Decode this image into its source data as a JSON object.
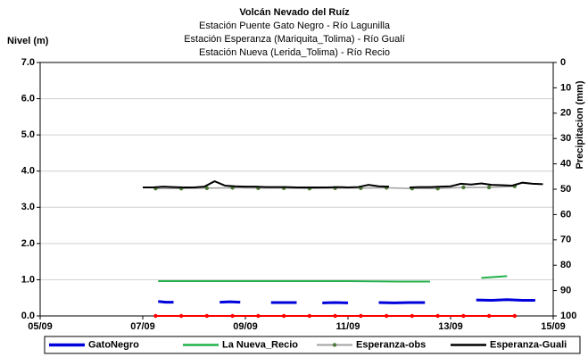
{
  "chart_data": {
    "type": "line",
    "title": "Volcán Nevado del Ruíz",
    "subtitles": [
      "Estación Puente Gato Negro - Río Lagunilla",
      "Estación Esperanza (Mariquita_Tolima) - Río Gualí",
      "Estación Nueva (Lerida_Tolima) - Río Recio"
    ],
    "y_label": "Nivel (m)",
    "y2_label": "Precipitacion (mm)",
    "xlim": [
      5,
      15
    ],
    "xticks": [
      {
        "value": 5,
        "label": "05/09"
      },
      {
        "value": 7,
        "label": "07/09"
      },
      {
        "value": 9,
        "label": "09/09"
      },
      {
        "value": 11,
        "label": "11/09"
      },
      {
        "value": 13,
        "label": "13/09"
      },
      {
        "value": 15,
        "label": "15/09"
      }
    ],
    "ylim": [
      0,
      7
    ],
    "yticks": [
      {
        "value": 0,
        "label": "0.0"
      },
      {
        "value": 1,
        "label": "1.0"
      },
      {
        "value": 2,
        "label": "2.0"
      },
      {
        "value": 3,
        "label": "3.0"
      },
      {
        "value": 4,
        "label": "4.0"
      },
      {
        "value": 5,
        "label": "5.0"
      },
      {
        "value": 6,
        "label": "6.0"
      },
      {
        "value": 7,
        "label": "7.0"
      }
    ],
    "y2lim": [
      0,
      100
    ],
    "y2_inverted": true,
    "y2ticks": [
      0,
      10,
      20,
      30,
      40,
      50,
      60,
      70,
      80,
      90,
      100
    ],
    "grid": true,
    "legend": "bottom",
    "series": [
      {
        "name": "GatoNegro",
        "color": "#0000dd",
        "width": 3,
        "x": [
          7.3,
          7.45,
          7.6,
          8.0,
          8.5,
          8.7,
          8.9,
          9.2,
          9.5,
          9.75,
          10.0,
          10.2,
          10.5,
          10.75,
          11.0,
          11.3,
          11.6,
          11.9,
          12.2,
          12.5,
          13.0,
          13.5,
          13.8,
          14.1,
          14.4,
          14.65
        ],
        "values": [
          0.4,
          0.38,
          0.38,
          null,
          0.38,
          0.39,
          0.38,
          null,
          0.37,
          0.37,
          0.37,
          null,
          0.36,
          0.37,
          0.36,
          null,
          0.37,
          0.36,
          0.37,
          0.37,
          null,
          0.44,
          0.43,
          0.45,
          0.43,
          0.43
        ]
      },
      {
        "name": "La Nueva_Recio",
        "color": "#22b04b",
        "width": 2,
        "x": [
          7.3,
          8,
          9,
          10,
          11,
          12,
          12.6,
          13.1,
          13.6,
          14.1
        ],
        "values": [
          0.96,
          0.96,
          0.96,
          0.96,
          0.96,
          0.95,
          0.95,
          null,
          1.05,
          1.1
        ]
      },
      {
        "name": "Esperanza-obs",
        "color": "#a0a0a0",
        "marker_color": "#4f7a3a",
        "width": 1.5,
        "x": [
          7.25,
          7.75,
          8.25,
          8.75,
          9.25,
          9.75,
          10.25,
          10.75,
          11.25,
          11.75,
          12.25,
          12.75,
          13.25,
          13.75,
          14.25
        ],
        "values": [
          3.52,
          3.52,
          3.53,
          3.54,
          3.53,
          3.53,
          3.52,
          3.53,
          3.53,
          3.54,
          3.52,
          3.52,
          3.55,
          3.55,
          3.58
        ]
      },
      {
        "name": "Esperanza-Guali",
        "color": "#000000",
        "width": 2,
        "x": [
          7.0,
          7.2,
          7.4,
          7.6,
          7.8,
          8.0,
          8.2,
          8.4,
          8.6,
          8.8,
          9.0,
          9.2,
          9.4,
          9.6,
          9.8,
          10.0,
          10.2,
          10.4,
          10.6,
          10.8,
          11.0,
          11.2,
          11.4,
          11.6,
          11.8,
          12.0,
          12.2,
          12.4,
          12.6,
          12.8,
          13.0,
          13.2,
          13.4,
          13.6,
          13.8,
          14.0,
          14.2,
          14.4,
          14.6,
          14.8
        ],
        "values": [
          3.55,
          3.55,
          3.57,
          3.56,
          3.55,
          3.55,
          3.57,
          3.72,
          3.6,
          3.58,
          3.57,
          3.57,
          3.56,
          3.56,
          3.56,
          3.55,
          3.55,
          3.55,
          3.55,
          3.56,
          3.55,
          3.56,
          3.62,
          3.58,
          3.57,
          null,
          3.55,
          3.56,
          3.56,
          3.57,
          3.58,
          3.65,
          3.63,
          3.66,
          3.62,
          3.61,
          3.6,
          3.68,
          3.65,
          3.64
        ]
      },
      {
        "color": "#ff0000",
        "marker_color": "#ff0000",
        "width": 2,
        "x": [
          7.25,
          7.75,
          8.25,
          8.75,
          9.25,
          9.75,
          10.25,
          10.75,
          11.25,
          11.75,
          12.25,
          12.75,
          13.25,
          13.75,
          14.25
        ],
        "values": [
          0,
          0,
          0,
          0,
          0,
          0,
          0,
          0,
          0,
          0,
          0,
          0,
          0,
          0,
          0
        ]
      }
    ]
  }
}
